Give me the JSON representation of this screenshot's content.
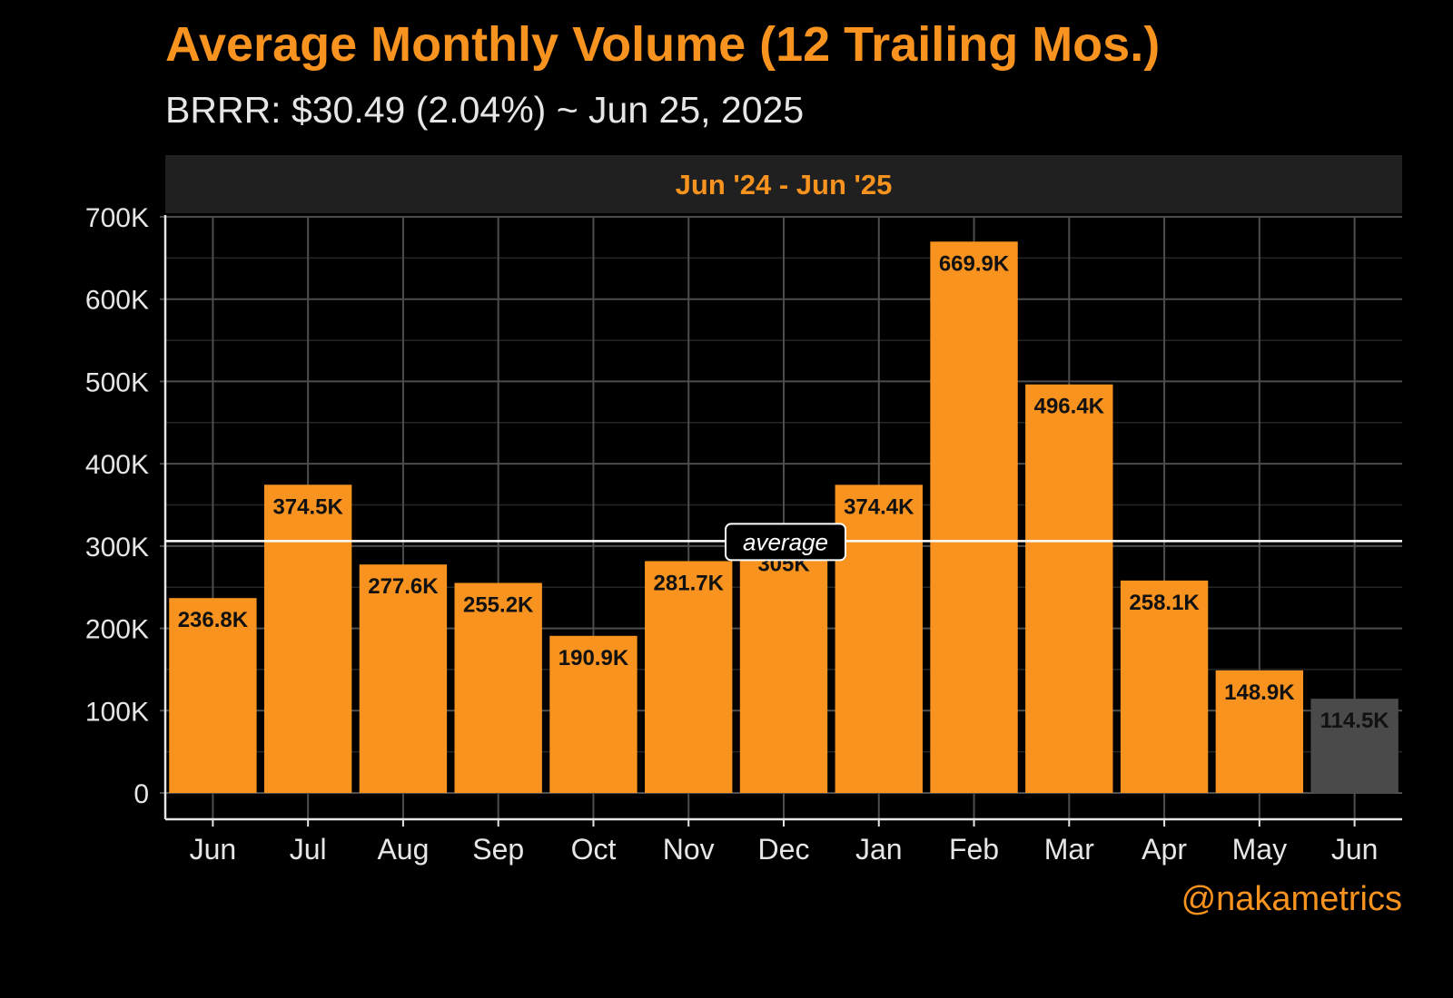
{
  "header": {
    "title": "Average Monthly Volume (12 Trailing Mos.)",
    "subtitle": "BRRR: $30.49 (2.04%) ~ Jun 25, 2025"
  },
  "credit": "@nakametrics",
  "colors": {
    "bar": "#F7931E",
    "bar_current": "#4A4A4A",
    "background": "#000000",
    "panel_header": "#202020",
    "grid_major": "#4D4D4D",
    "grid_minor": "#262626",
    "average_line": "#FFFFFF"
  },
  "chart_data": {
    "type": "bar",
    "facet_label": "Jun '24 - Jun '25",
    "categories": [
      "Jun",
      "Jul",
      "Aug",
      "Sep",
      "Oct",
      "Nov",
      "Dec",
      "Jan",
      "Feb",
      "Mar",
      "Apr",
      "May",
      "Jun"
    ],
    "values": [
      236800,
      374500,
      277600,
      255200,
      190900,
      281700,
      305000,
      374400,
      669900,
      496400,
      258100,
      148900,
      114500
    ],
    "labels": [
      "236.8K",
      "374.5K",
      "277.6K",
      "255.2K",
      "190.9K",
      "281.7K",
      "305K",
      "374.4K",
      "669.9K",
      "496.4K",
      "258.1K",
      "148.9K",
      "114.5K"
    ],
    "highlight_last": true,
    "average": 306000,
    "average_label": "average",
    "y_ticks": [
      0,
      100000,
      200000,
      300000,
      400000,
      500000,
      600000,
      700000
    ],
    "y_tick_labels": [
      "0",
      "100K",
      "200K",
      "300K",
      "400K",
      "500K",
      "600K",
      "700K"
    ],
    "ylim": [
      0,
      700000
    ],
    "grid": true,
    "legend": "none"
  }
}
